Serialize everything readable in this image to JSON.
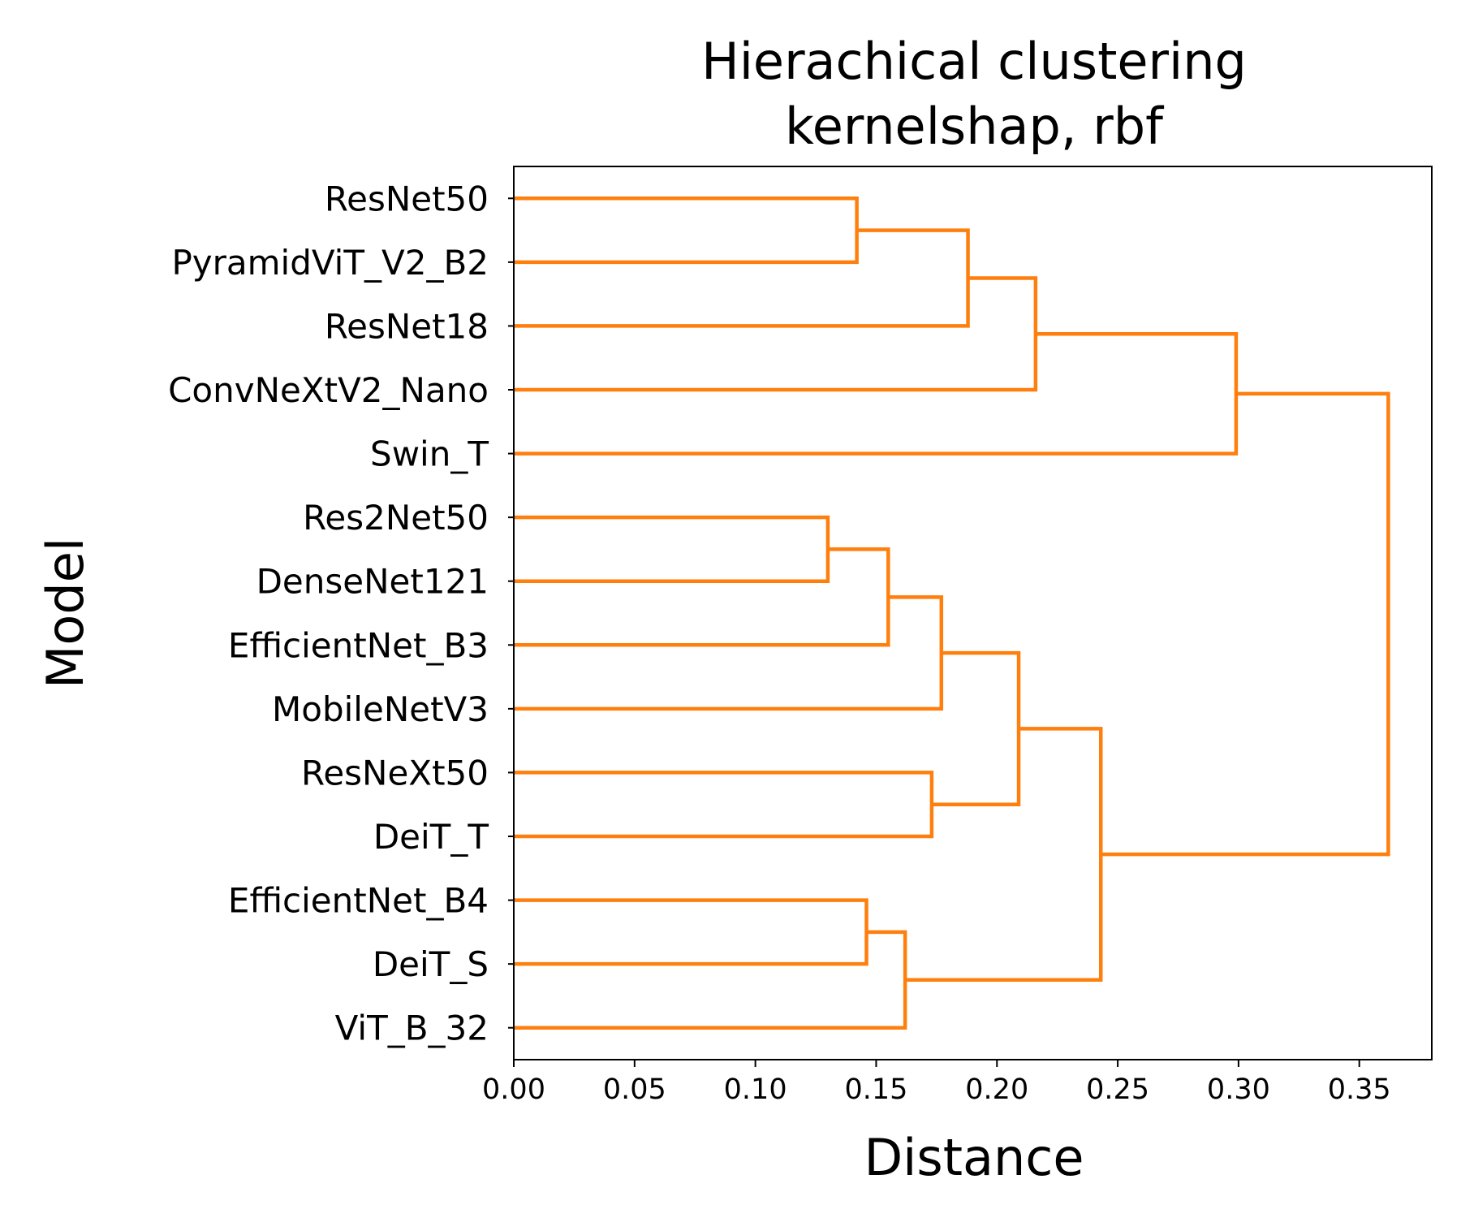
{
  "chart_data": {
    "type": "dendrogram",
    "title_line1": "Hierachical clustering",
    "title_line2": "kernelshap, rbf",
    "xlabel": "Distance",
    "ylabel": "Model",
    "xlim": [
      0,
      0.38
    ],
    "xticks": [
      0.0,
      0.05,
      0.1,
      0.15,
      0.2,
      0.25,
      0.3,
      0.35
    ],
    "xtick_labels": [
      "0.00",
      "0.05",
      "0.10",
      "0.15",
      "0.20",
      "0.25",
      "0.30",
      "0.35"
    ],
    "leaves": [
      "ResNet50",
      "PyramidViT_V2_B2",
      "ResNet18",
      "ConvNeXtV2_Nano",
      "Swin_T",
      "Res2Net50",
      "DenseNet121",
      "EfficientNet_B3",
      "MobileNetV3",
      "ResNeXt50",
      "DeiT_T",
      "EfficientNet_B4",
      "DeiT_S",
      "ViT_B_32"
    ],
    "merges": [
      {
        "a": "ResNet50",
        "b": "PyramidViT_V2_B2",
        "distance": 0.142
      },
      {
        "a": "#0",
        "b": "ResNet18",
        "distance": 0.188
      },
      {
        "a": "#1",
        "b": "ConvNeXtV2_Nano",
        "distance": 0.216
      },
      {
        "a": "#2",
        "b": "Swin_T",
        "distance": 0.299
      },
      {
        "a": "Res2Net50",
        "b": "DenseNet121",
        "distance": 0.13
      },
      {
        "a": "#4",
        "b": "EfficientNet_B3",
        "distance": 0.155
      },
      {
        "a": "#5",
        "b": "MobileNetV3",
        "distance": 0.177
      },
      {
        "a": "ResNeXt50",
        "b": "DeiT_T",
        "distance": 0.173
      },
      {
        "a": "#6",
        "b": "#7",
        "distance": 0.209
      },
      {
        "a": "EfficientNet_B4",
        "b": "DeiT_S",
        "distance": 0.146
      },
      {
        "a": "#9",
        "b": "ViT_B_32",
        "distance": 0.162
      },
      {
        "a": "#8",
        "b": "#10",
        "distance": 0.243
      },
      {
        "a": "#3",
        "b": "#11",
        "distance": 0.362
      }
    ],
    "link_color": "#ff7f0e",
    "grid": false,
    "legend": "none"
  }
}
